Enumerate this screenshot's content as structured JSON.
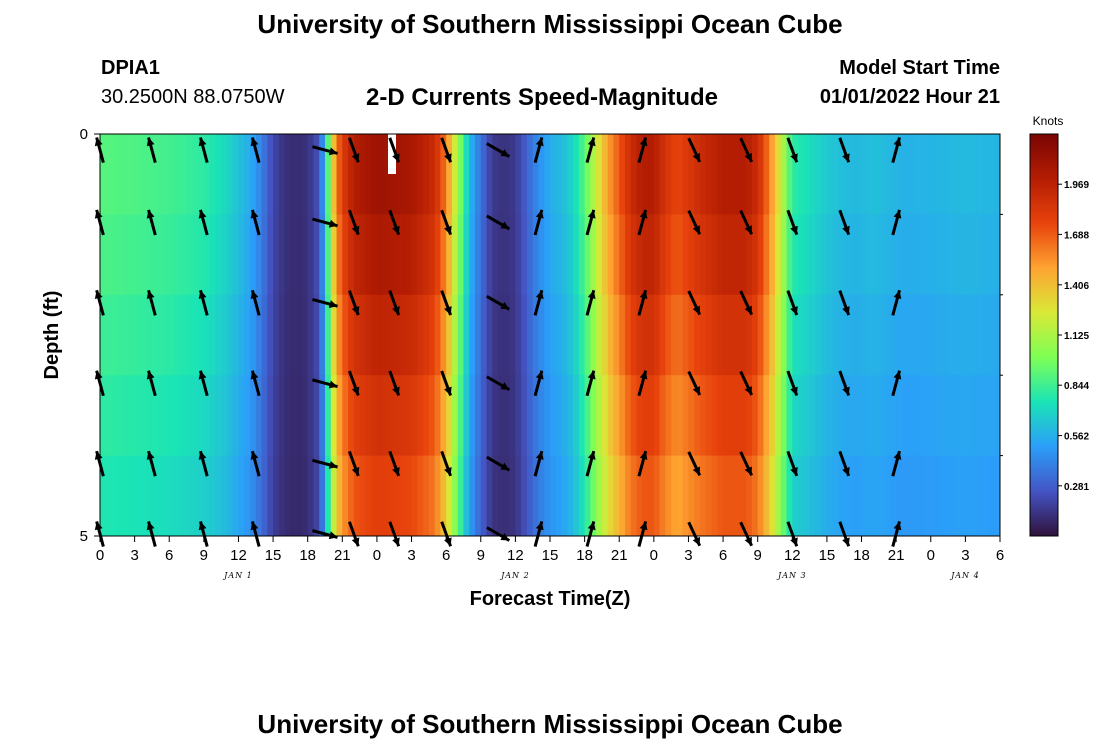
{
  "header": {
    "title": "University of Southern Mississippi Ocean Cube",
    "station_id": "DPIA1",
    "station_coords": "30.2500N  88.0750W",
    "subtitle": "2-D Currents Speed-Magnitude",
    "model_start_label": "Model Start Time",
    "model_start_value": "01/01/2022 Hour 21"
  },
  "footer": {
    "title": "University of Southern Mississippi Ocean Cube"
  },
  "chart_data": {
    "type": "heatmap",
    "title": "2-D Currents Speed-Magnitude",
    "xlabel": "Forecast Time(Z)",
    "ylabel": "Depth (ft)",
    "x_tick_labels": [
      "0",
      "3",
      "6",
      "9",
      "12",
      "15",
      "18",
      "21",
      "0",
      "3",
      "6",
      "9",
      "12",
      "15",
      "18",
      "21",
      "0",
      "3",
      "6",
      "9",
      "12",
      "15",
      "18",
      "21",
      "0",
      "3",
      "6"
    ],
    "x_range_hours": [
      0,
      78
    ],
    "date_labels": [
      {
        "label": "JAN 1",
        "hour": 12
      },
      {
        "label": "JAN 2",
        "hour": 36
      },
      {
        "label": "JAN 3",
        "hour": 60
      },
      {
        "label": "JAN 4",
        "hour": 75
      }
    ],
    "y_tick_labels": [
      "0",
      "5"
    ],
    "y_range": [
      0,
      5
    ],
    "colorbar": {
      "label": "Knots",
      "ticks": [
        "1.969",
        "1.688",
        "1.406",
        "1.125",
        "0.844",
        "0.562",
        "0.281"
      ],
      "tick_values": [
        1.969,
        1.688,
        1.406,
        1.125,
        0.844,
        0.562,
        0.281
      ],
      "range": [
        0.0,
        2.25
      ],
      "colors": [
        "#30123b",
        "#4454c4",
        "#2b9ef9",
        "#1ae4b6",
        "#7eff55",
        "#d9e937",
        "#fea331",
        "#e8430c",
        "#b41d03",
        "#7a0403"
      ]
    },
    "depth_levels": [
      0,
      1,
      2,
      3,
      4,
      5
    ],
    "speed_profile": {
      "hours": [
        0,
        3,
        6,
        9,
        11,
        13,
        14,
        15,
        16,
        17,
        18,
        19,
        19.5,
        20,
        20.5,
        21,
        22,
        24,
        27,
        29,
        30,
        31,
        32,
        33,
        34,
        35,
        36,
        37,
        38,
        39,
        40,
        41,
        42,
        43,
        44,
        45,
        46,
        47,
        48,
        49,
        50,
        52,
        54,
        56,
        57,
        58,
        59,
        60,
        62,
        63,
        64,
        65,
        66,
        67,
        68,
        69,
        70,
        72,
        75,
        78
      ],
      "surface": [
        0.9,
        0.88,
        0.85,
        0.8,
        0.7,
        0.55,
        0.4,
        0.2,
        0.12,
        0.1,
        0.12,
        0.25,
        0.6,
        1.2,
        1.6,
        1.8,
        2.0,
        2.1,
        2.05,
        1.9,
        1.6,
        1.1,
        0.6,
        0.35,
        0.15,
        0.12,
        0.15,
        0.3,
        0.45,
        0.55,
        0.6,
        0.7,
        0.9,
        1.2,
        1.5,
        1.7,
        1.9,
        2.0,
        2.0,
        1.85,
        1.75,
        1.9,
        2.0,
        2.0,
        1.9,
        1.6,
        1.2,
        0.8,
        0.7,
        0.65,
        0.62,
        0.6,
        0.6,
        0.62,
        0.6,
        0.58,
        0.57,
        0.58,
        0.6,
        0.58
      ],
      "depth_factors": [
        1.0,
        0.97,
        0.93,
        0.89,
        0.85,
        0.8
      ]
    },
    "arrows": {
      "times": [
        0,
        4.5,
        9,
        13.5,
        19.5,
        22,
        25.5,
        30,
        34.5,
        38,
        42.5,
        47,
        51.5,
        56,
        60,
        64.5,
        69
      ],
      "directions_deg": [
        345,
        345,
        345,
        345,
        105,
        160,
        160,
        160,
        120,
        15,
        15,
        15,
        155,
        155,
        160,
        160,
        15
      ]
    }
  }
}
